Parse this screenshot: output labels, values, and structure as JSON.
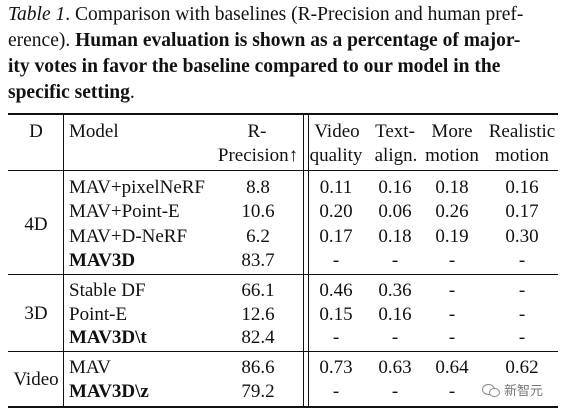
{
  "caption": {
    "label": "Table 1",
    "lines": [
      {
        "italic": "Table 1",
        "normal": ". Comparison with baselines (R-Precision and human pref-"
      },
      {
        "normal": "erence). ",
        "bold": "Human evaluation is shown as a percentage of major-"
      },
      {
        "bold": "ity votes in favor the baseline compared to our model in the"
      },
      {
        "bold": "specific setting",
        "normal": "."
      }
    ]
  },
  "table": {
    "headers": {
      "d": "D",
      "model": "Model",
      "rprec_1": "R-",
      "rprec_2": "Precision↑",
      "video_1": "Video",
      "video_2": "quality",
      "text_1": "Text-",
      "text_2": "align.",
      "motion_1": "More",
      "motion_2": "motion",
      "real_1": "Realistic",
      "real_2": "motion"
    },
    "groups": [
      {
        "d": "4D",
        "rows": [
          {
            "model": "MAV+pixelNeRF",
            "bold": false,
            "rprec": "8.8",
            "video": "0.11",
            "text": "0.16",
            "motion": "0.18",
            "real": "0.16"
          },
          {
            "model": "MAV+Point-E",
            "bold": false,
            "rprec": "10.6",
            "video": "0.20",
            "text": "0.06",
            "motion": "0.26",
            "real": "0.17"
          },
          {
            "model": "MAV+D-NeRF",
            "bold": false,
            "rprec": "6.2",
            "video": "0.17",
            "text": "0.18",
            "motion": "0.19",
            "real": "0.30"
          },
          {
            "model": "MAV3D",
            "bold": true,
            "rprec": "83.7",
            "video": "-",
            "text": "-",
            "motion": "-",
            "real": "-"
          }
        ]
      },
      {
        "d": "3D",
        "rows": [
          {
            "model": "Stable DF",
            "bold": false,
            "rprec": "66.1",
            "video": "0.46",
            "text": "0.36",
            "motion": "-",
            "real": "-"
          },
          {
            "model": "Point-E",
            "bold": false,
            "rprec": "12.6",
            "video": "0.15",
            "text": "0.16",
            "motion": "-",
            "real": "-"
          },
          {
            "model": "MAV3D\\t",
            "bold": true,
            "rprec": "82.4",
            "video": "-",
            "text": "-",
            "motion": "-",
            "real": "-"
          }
        ]
      },
      {
        "d": "Video",
        "rows": [
          {
            "model": "MAV",
            "bold": false,
            "rprec": "86.6",
            "video": "0.73",
            "text": "0.63",
            "motion": "0.64",
            "real": "0.62"
          },
          {
            "model": "MAV3D\\z",
            "bold": true,
            "rprec": "79.2",
            "video": "-",
            "text": "-",
            "motion": "-",
            "real": "-"
          }
        ]
      }
    ]
  },
  "watermark": {
    "text": "新智元",
    "icon": "wechat-icon"
  }
}
